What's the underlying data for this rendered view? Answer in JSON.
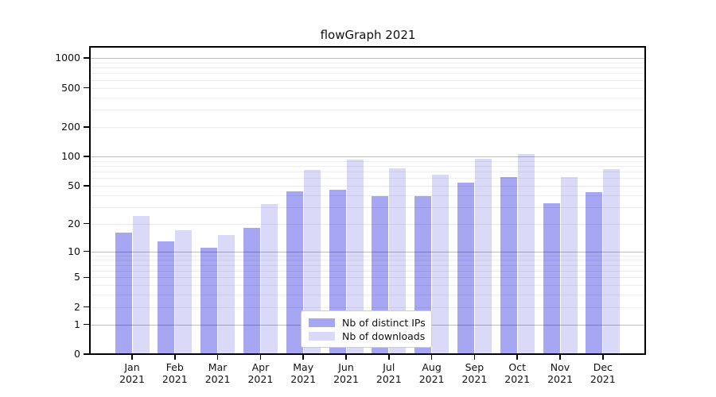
{
  "chart_data": {
    "type": "bar",
    "title": "flowGraph 2021",
    "categories": [
      "Jan",
      "Feb",
      "Mar",
      "Apr",
      "May",
      "Jun",
      "Jul",
      "Aug",
      "Sep",
      "Oct",
      "Nov",
      "Dec"
    ],
    "category_year": "2021",
    "series": [
      {
        "name": "Nb of distinct IPs",
        "color": "#a6a6f2",
        "values": [
          16,
          13,
          11,
          18,
          44,
          45,
          39,
          39,
          54,
          61,
          33,
          43
        ]
      },
      {
        "name": "Nb of downloads",
        "color": "#dadaf8",
        "values": [
          24,
          17,
          15,
          32,
          72,
          92,
          75,
          65,
          95,
          105,
          61,
          74
        ]
      }
    ],
    "y_ticks": [
      0,
      1,
      2,
      5,
      10,
      20,
      50,
      100,
      200,
      500,
      1000
    ],
    "y_minor_ticks": [
      3,
      4,
      6,
      7,
      8,
      9,
      30,
      40,
      60,
      70,
      80,
      90,
      300,
      400,
      600,
      700,
      800,
      900
    ],
    "y_major_gridlines": [
      1,
      10,
      100,
      1000
    ],
    "scale": "symlog: y ~ log10(1+value)",
    "ylim": [
      0,
      1300
    ],
    "xlabel": "",
    "ylabel": "",
    "grid": true,
    "legend_position": "lower center",
    "colors": {
      "major_grid": "rgba(0,0,0,0.26)",
      "minor_grid": "rgba(0,0,0,0.065)",
      "spine": "#000000",
      "text": "#111111",
      "background": "#ffffff"
    }
  }
}
